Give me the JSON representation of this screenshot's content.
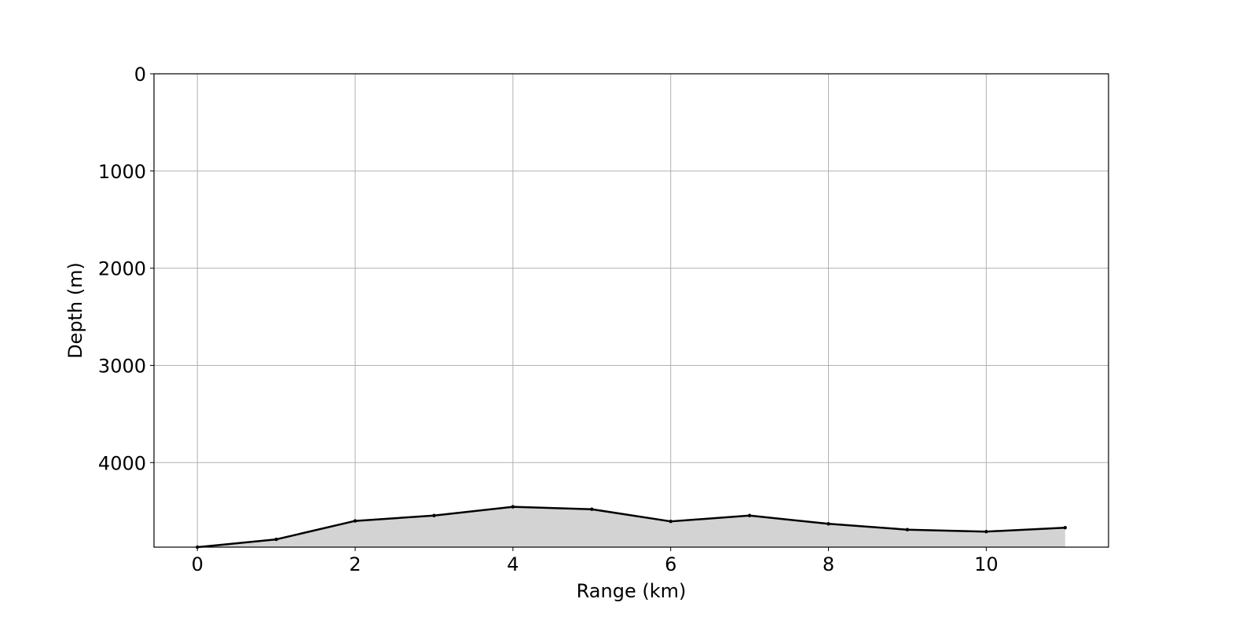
{
  "chart_data": {
    "type": "area",
    "title": "",
    "xlabel": "Range (km)",
    "ylabel": "Depth (m)",
    "xlim": [
      -0.55,
      11.55
    ],
    "ylim": [
      4870,
      0
    ],
    "y_inverted": true,
    "grid": true,
    "legend": "none",
    "x_ticks": [
      0,
      2,
      4,
      6,
      8,
      10
    ],
    "x_tick_labels": [
      "0",
      "2",
      "4",
      "6",
      "8",
      "10"
    ],
    "y_ticks": [
      0,
      1000,
      2000,
      3000,
      4000
    ],
    "y_tick_labels": [
      "0",
      "1000",
      "2000",
      "3000",
      "4000"
    ],
    "series": [
      {
        "x": [
          0,
          1,
          2,
          3,
          4,
          5,
          6,
          7,
          8,
          9,
          10,
          11
        ],
        "y": [
          4870,
          4790,
          4600,
          4545,
          4455,
          4480,
          4605,
          4545,
          4630,
          4690,
          4710,
          4670
        ]
      }
    ],
    "colors": {
      "line": "#000000",
      "fill": "#d3d3d3",
      "grid": "#b0b0b0",
      "frame": "#000000"
    }
  }
}
